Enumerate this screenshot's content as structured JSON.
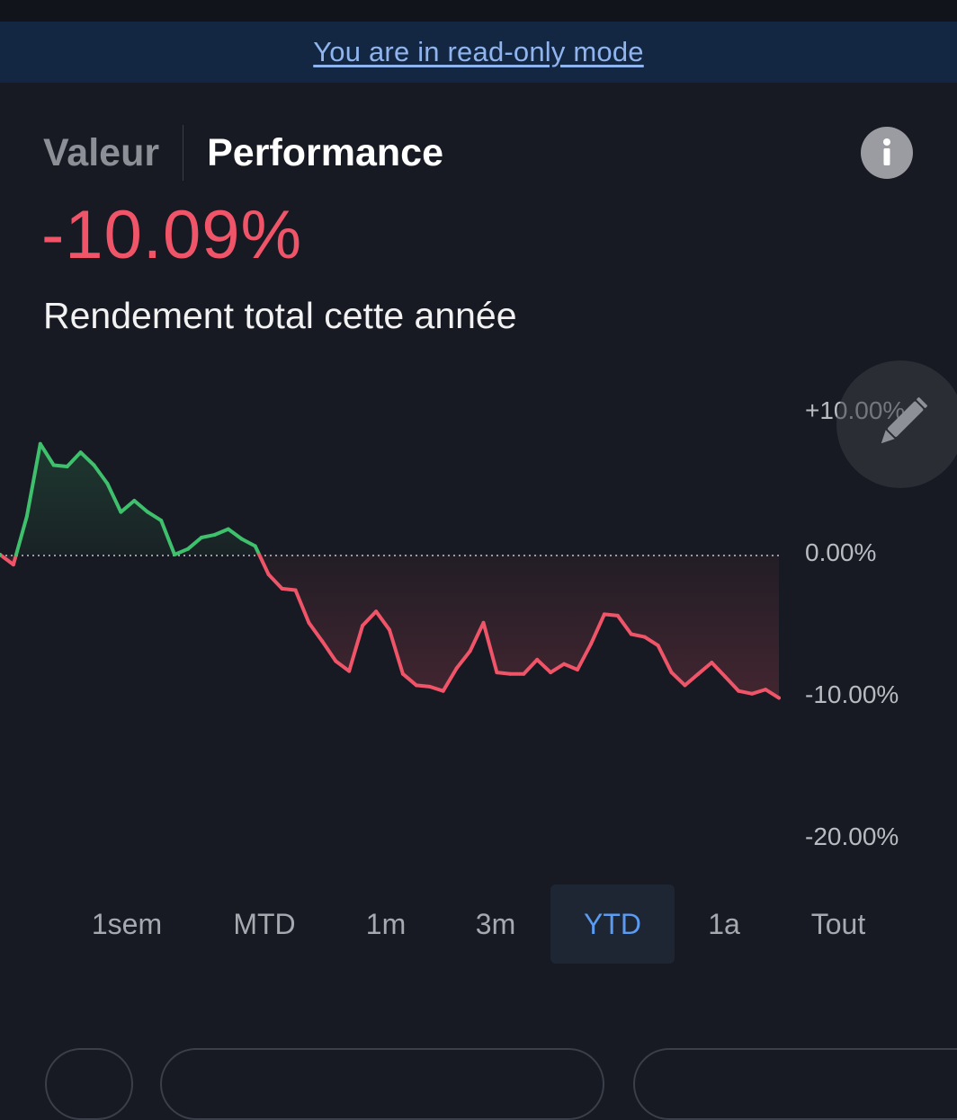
{
  "banner": {
    "text": "You are in read-only mode"
  },
  "tabs": [
    {
      "label": "Valeur",
      "active": false
    },
    {
      "label": "Performance",
      "active": true
    }
  ],
  "icons": {
    "info": "info-icon",
    "edit": "pencil-icon"
  },
  "performance": {
    "value": "-10.09%",
    "subtitle": "Rendement total cette année"
  },
  "colors": {
    "positive": "#3fc06c",
    "negative": "#f05468",
    "accent": "#5b9cf2",
    "background": "#171a22",
    "banner": "#132743"
  },
  "chart_data": {
    "type": "line",
    "ylim": [
      -20,
      10
    ],
    "y_ticks": [
      "+10.00%",
      "0.00%",
      "-10.00%",
      "-20.00%"
    ],
    "baseline": 0,
    "values": [
      0.0,
      -0.7,
      2.7,
      7.8,
      6.3,
      6.2,
      7.2,
      6.3,
      5.0,
      3.0,
      3.8,
      3.0,
      2.4,
      0.0,
      0.4,
      1.2,
      1.4,
      1.8,
      1.1,
      0.6,
      -1.4,
      -2.4,
      -2.5,
      -4.8,
      -6.1,
      -7.5,
      -8.2,
      -5.0,
      -4.0,
      -5.3,
      -8.4,
      -9.2,
      -9.3,
      -9.6,
      -8.0,
      -6.8,
      -4.8,
      -8.3,
      -8.4,
      -8.4,
      -7.4,
      -8.3,
      -7.7,
      -8.1,
      -6.3,
      -4.2,
      -4.3,
      -5.6,
      -5.8,
      -6.4,
      -8.3,
      -9.2,
      -8.4,
      -7.6,
      -8.6,
      -9.6,
      -9.8,
      -9.5,
      -10.09
    ]
  },
  "periods": [
    {
      "label": "1sem",
      "active": false
    },
    {
      "label": "MTD",
      "active": false
    },
    {
      "label": "1m",
      "active": false
    },
    {
      "label": "3m",
      "active": false
    },
    {
      "label": "YTD",
      "active": true
    },
    {
      "label": "1a",
      "active": false
    },
    {
      "label": "Tout",
      "active": false
    }
  ]
}
